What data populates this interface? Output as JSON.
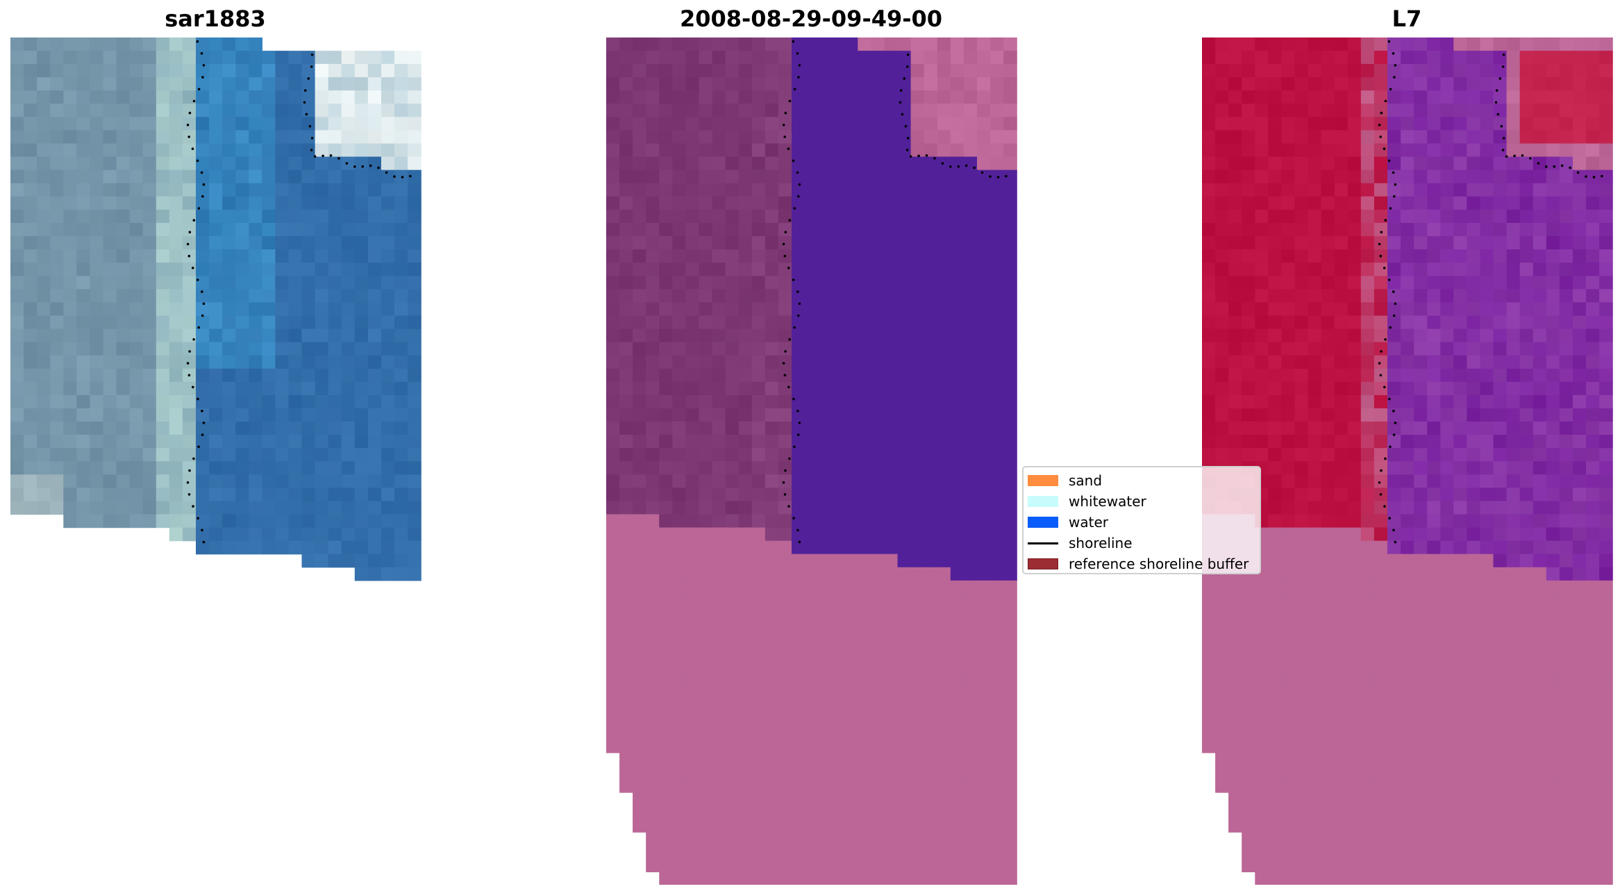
{
  "panels": [
    {
      "title": "sar1883",
      "kind": "rgb"
    },
    {
      "title": "2008-08-29-09-49-00",
      "kind": "classified"
    },
    {
      "title": "L7",
      "kind": "index"
    }
  ],
  "legend": {
    "items": [
      {
        "label": "sand",
        "color": "#ff8c3f",
        "type": "patch"
      },
      {
        "label": "whitewater",
        "color": "#c8fcfc",
        "type": "patch"
      },
      {
        "label": "water",
        "color": "#0a5cfa",
        "type": "patch"
      },
      {
        "label": "shoreline",
        "color": "#000000",
        "type": "line"
      },
      {
        "label": "reference shoreline buffer",
        "color": "#9b2d33",
        "type": "patch"
      }
    ]
  },
  "colors": {
    "buffer_overlay": "#bb6696",
    "classified_land": "#7a3570",
    "classified_water": "#52219a",
    "index_land": "#bb1040",
    "index_water": "#7a22a0"
  }
}
